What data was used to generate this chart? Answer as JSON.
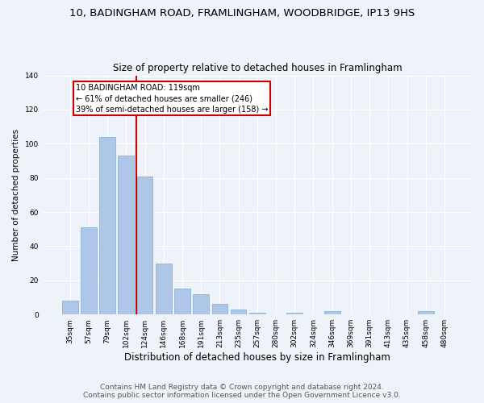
{
  "title": "10, BADINGHAM ROAD, FRAMLINGHAM, WOODBRIDGE, IP13 9HS",
  "subtitle": "Size of property relative to detached houses in Framlingham",
  "xlabel": "Distribution of detached houses by size in Framlingham",
  "ylabel": "Number of detached properties",
  "categories": [
    "35sqm",
    "57sqm",
    "79sqm",
    "102sqm",
    "124sqm",
    "146sqm",
    "168sqm",
    "191sqm",
    "213sqm",
    "235sqm",
    "257sqm",
    "280sqm",
    "302sqm",
    "324sqm",
    "346sqm",
    "369sqm",
    "391sqm",
    "413sqm",
    "435sqm",
    "458sqm",
    "480sqm"
  ],
  "values": [
    8,
    51,
    104,
    93,
    81,
    30,
    15,
    12,
    6,
    3,
    1,
    0,
    1,
    0,
    2,
    0,
    0,
    0,
    0,
    2,
    0
  ],
  "bar_color": "#aec6e8",
  "bar_edge_color": "#7bafd4",
  "vline_label": "10 BADINGHAM ROAD: 119sqm",
  "annotation_line1": "← 61% of detached houses are smaller (246)",
  "annotation_line2": "39% of semi-detached houses are larger (158) →",
  "annotation_box_color": "#ffffff",
  "annotation_box_edge_color": "#cc0000",
  "vline_color": "#cc0000",
  "ylim": [
    0,
    140
  ],
  "yticks": [
    0,
    20,
    40,
    60,
    80,
    100,
    120,
    140
  ],
  "footer1": "Contains HM Land Registry data © Crown copyright and database right 2024.",
  "footer2": "Contains public sector information licensed under the Open Government Licence v3.0.",
  "bg_color": "#eef2f9",
  "plot_bg_color": "#eef2f9",
  "grid_color": "#ffffff",
  "title_fontsize": 9.5,
  "subtitle_fontsize": 8.5,
  "xlabel_fontsize": 8.5,
  "ylabel_fontsize": 7.5,
  "tick_fontsize": 6.5,
  "annot_fontsize": 7,
  "footer_fontsize": 6.5
}
